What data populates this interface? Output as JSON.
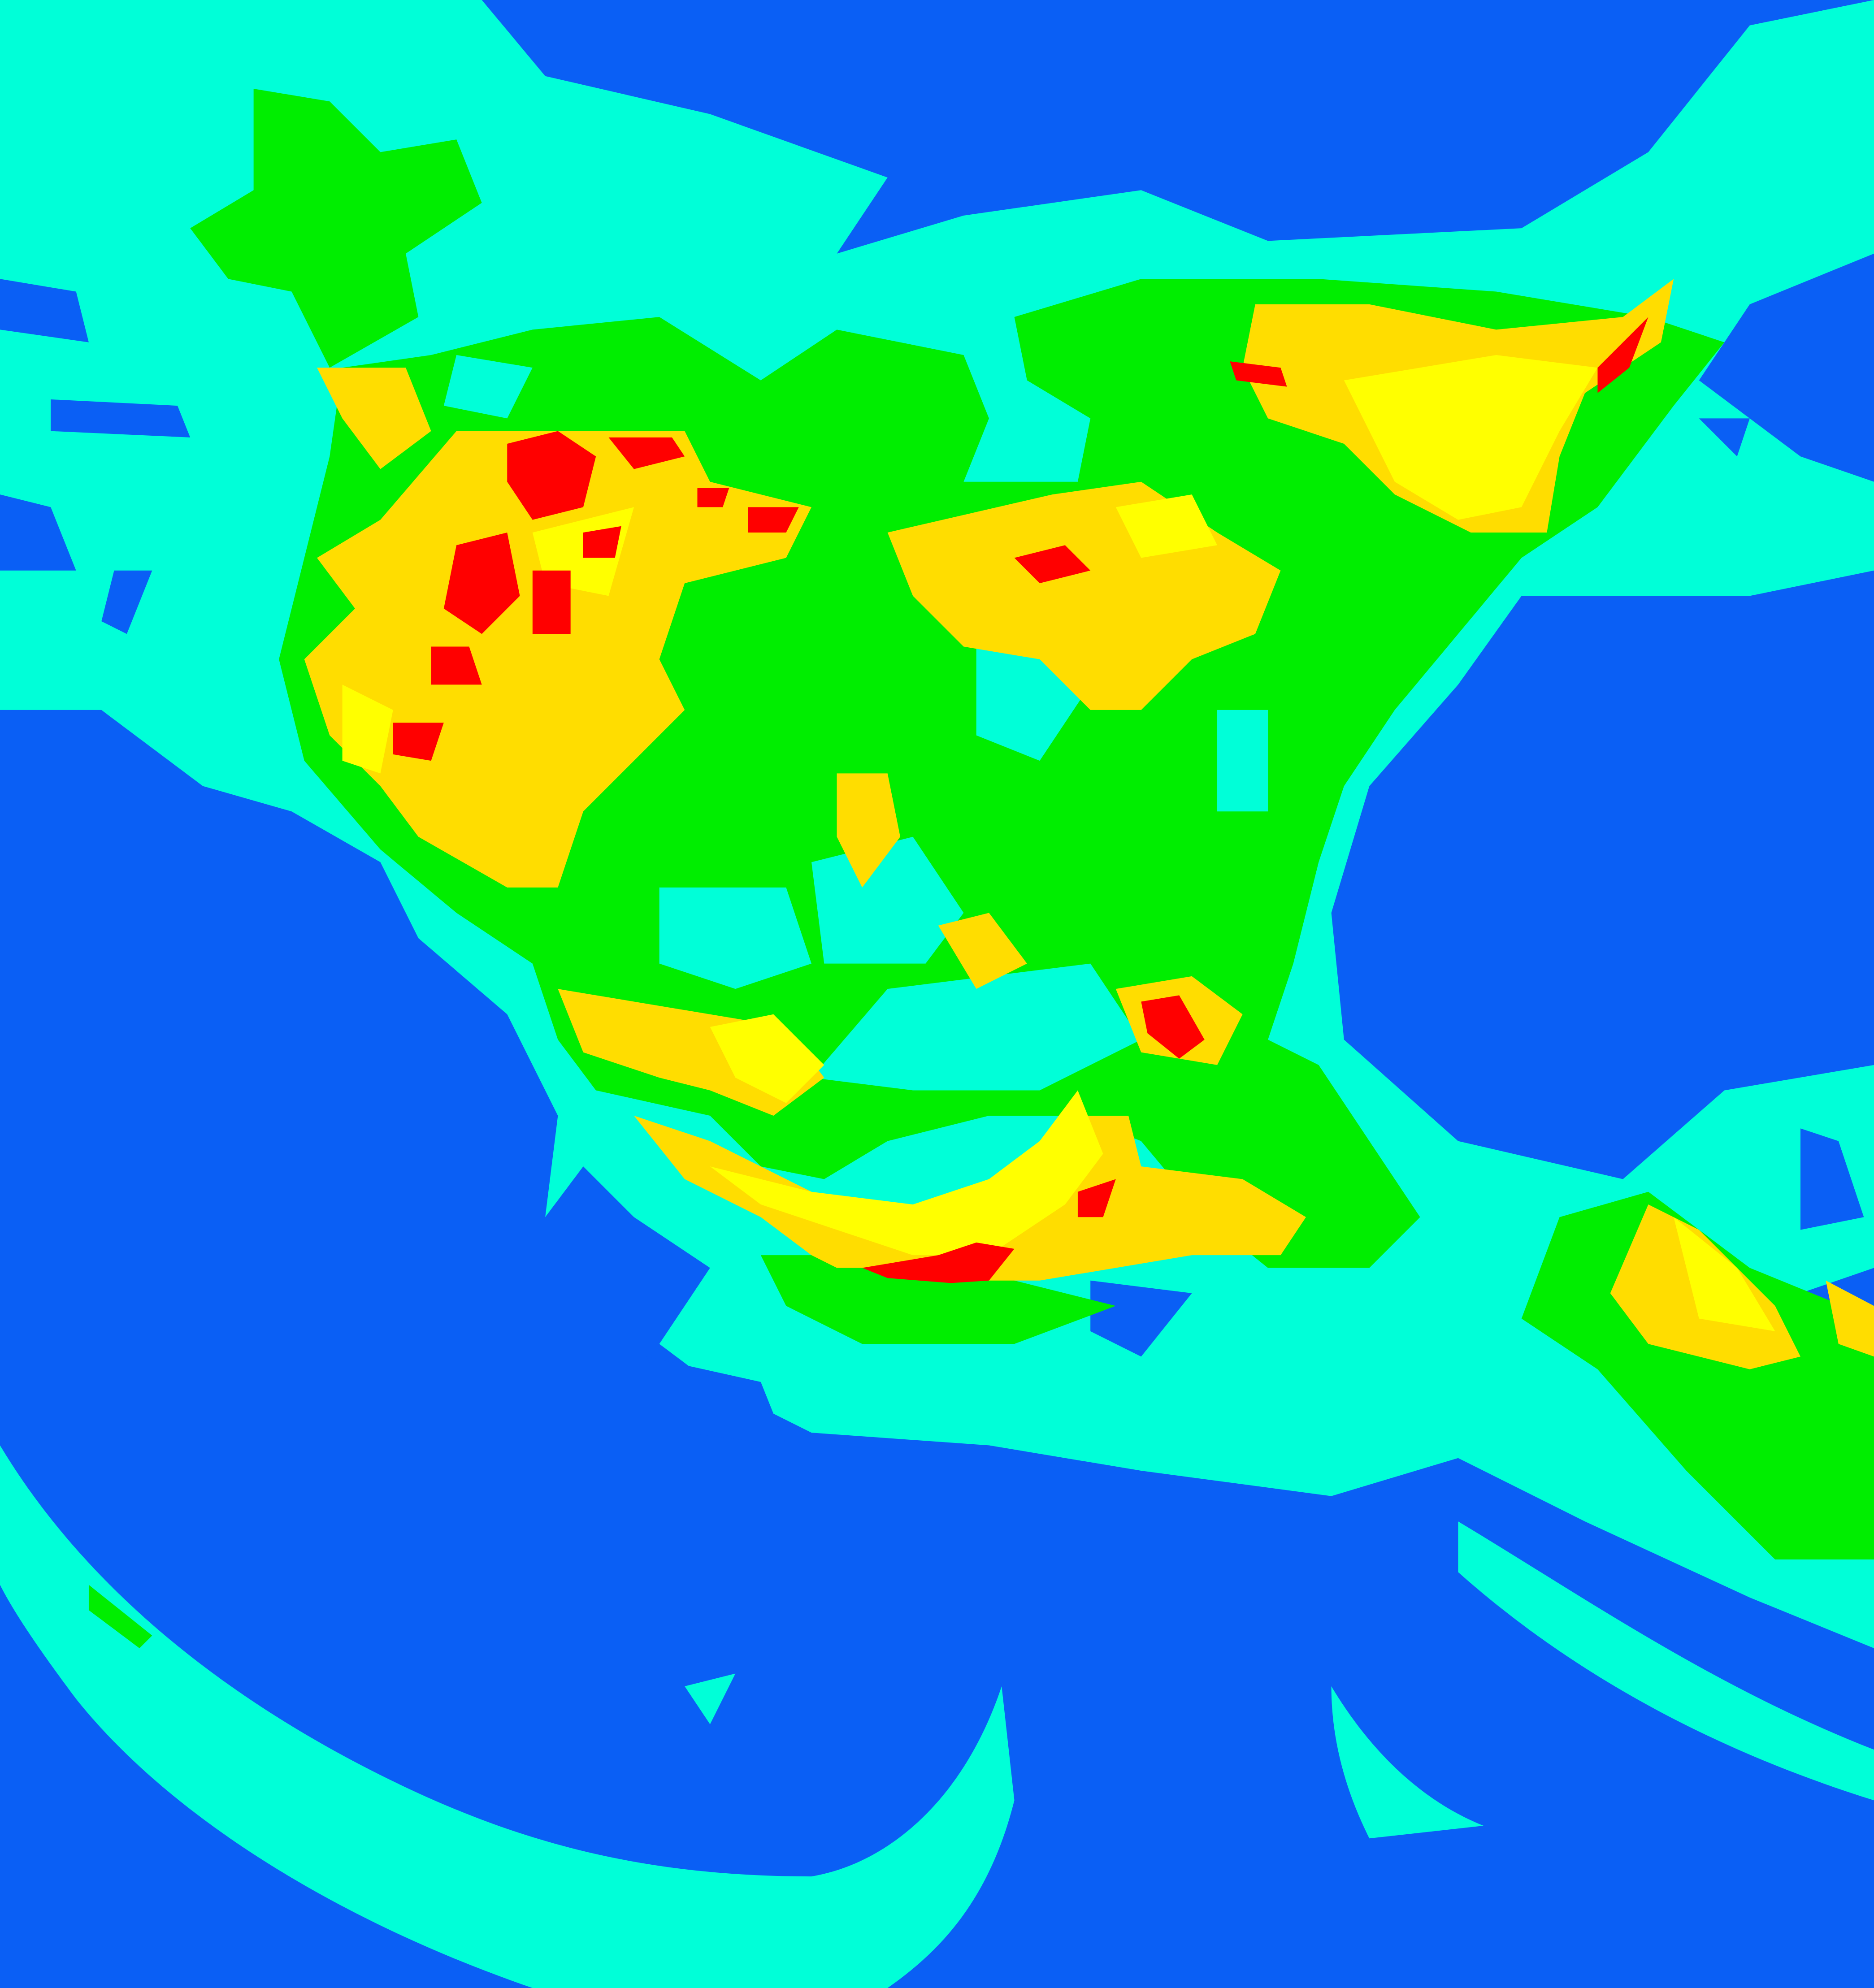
{
  "map": {
    "colors": {
      "ocean_clear": "#0a5ff5",
      "low_cloud": "#00ffd8",
      "mid_cloud": "#00ee00",
      "high_cloud": "#ffff00",
      "very_high_cloud": "#ffdd00",
      "extreme": "#ff0000"
    }
  }
}
